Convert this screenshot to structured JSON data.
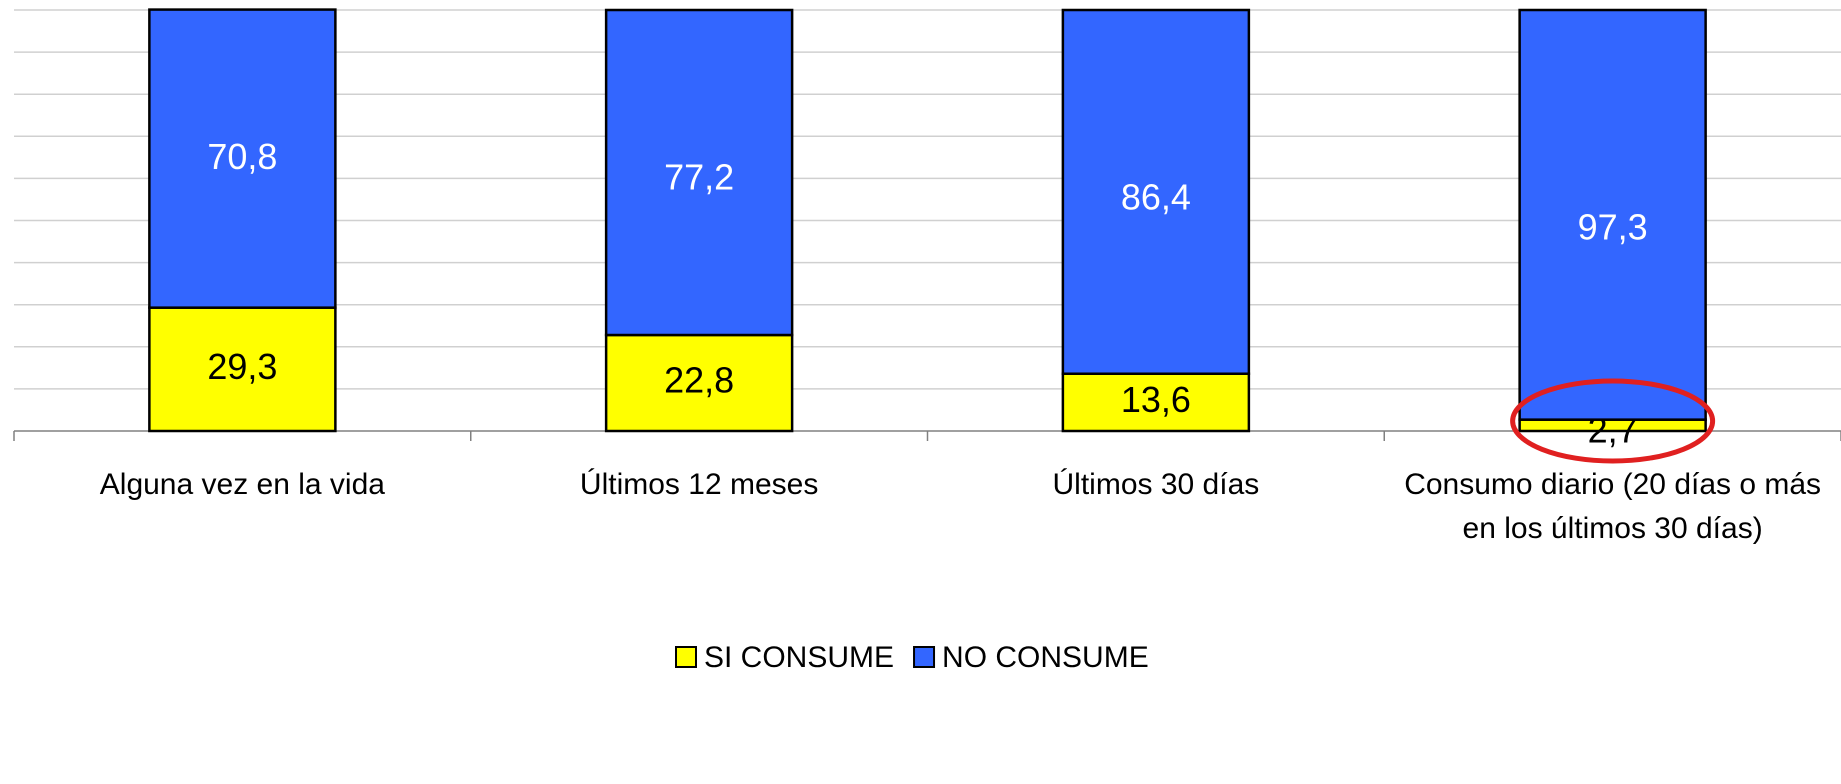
{
  "chart_data": {
    "type": "stacked_bar",
    "categories": [
      "Alguna vez en la vida",
      "Últimos 12 meses",
      "Últimos 30 días",
      "Consumo diario (20 días o más en los últimos 30 días)"
    ],
    "series": [
      {
        "name": "SI CONSUME",
        "color": "#ffff00",
        "values": [
          29.3,
          22.8,
          13.6,
          2.7
        ],
        "value_labels": [
          "29,3",
          "22,8",
          "13,6",
          "2,7"
        ]
      },
      {
        "name": "NO CONSUME",
        "color": "#3366ff",
        "values": [
          70.8,
          77.2,
          86.4,
          97.3
        ],
        "value_labels": [
          "70,8",
          "77,2",
          "86,4",
          "97,3"
        ]
      }
    ],
    "ylim": [
      0,
      100
    ],
    "yticks": [
      0,
      10,
      20,
      30,
      40,
      50,
      60,
      70,
      80,
      90,
      100
    ],
    "grid": true,
    "legend": "bottom"
  }
}
